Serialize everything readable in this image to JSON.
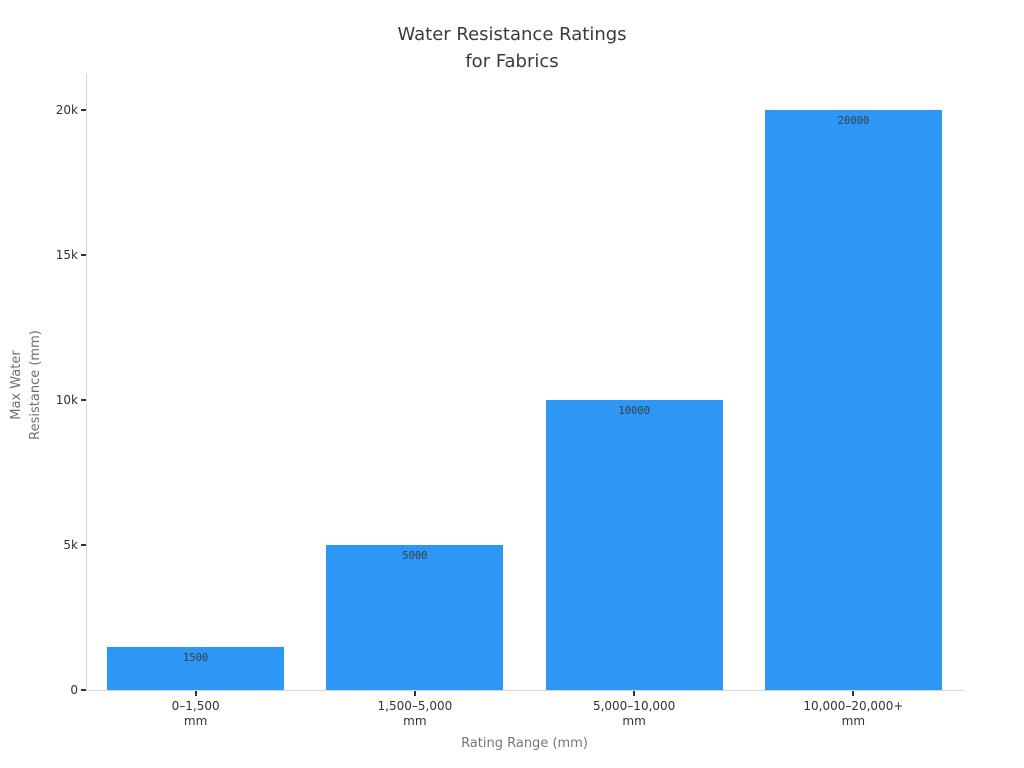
{
  "title": {
    "line1": "Water Resistance Ratings",
    "line2": "for Fabrics"
  },
  "chart_data": {
    "type": "bar",
    "title": "Water Resistance Ratings for Fabrics",
    "categories": [
      "0–1,500",
      "1,500–5,000",
      "5,000–10,000",
      "10,000–20,000+"
    ],
    "category_unit": "mm",
    "values": [
      1500,
      5000,
      10000,
      20000
    ],
    "bar_labels": [
      "1500",
      "5000",
      "10000",
      "20000"
    ],
    "xlabel": "Rating Range (mm)",
    "ylabel_lines": [
      "Max Water",
      "Resistance (mm)"
    ],
    "ylim": [
      0,
      20000
    ],
    "yticks": {
      "values": [
        0,
        5000,
        10000,
        15000,
        20000
      ],
      "labels": [
        "0",
        "5k",
        "10k",
        "15k",
        "20k"
      ]
    },
    "grid": false,
    "legend": "none",
    "colors": {
      "bar": "#2e96f5",
      "title_text": "#3a3a3a",
      "tick_text": "#333333",
      "axis_title_text": "#757575",
      "spine": "#d7d7d7",
      "tick_mark": "#333333",
      "bar_label_text": "#344049",
      "background": "#ffffff"
    }
  }
}
